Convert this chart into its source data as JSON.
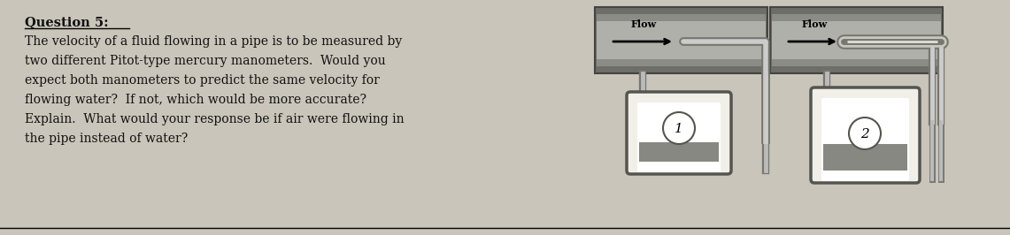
{
  "bg_color": "#cac5ba",
  "title": "Question 5:",
  "body_lines": [
    "The velocity of a fluid flowing in a pipe is to be measured by",
    "two different Pitot-type mercury manometers.  Would you",
    "expect both manometers to predict the same velocity for",
    "flowing water?  If not, which would be more accurate?",
    "Explain.  What would your response be if air were flowing in",
    "the pipe instead of water?"
  ],
  "flow_label": "Flow",
  "label1": "1",
  "label2": "2",
  "pipe_dark": "#6e6e68",
  "pipe_mid": "#8c8c86",
  "pipe_light": "#b0b0aa",
  "tube_color": "#aaaaaa",
  "tube_dark": "#777770",
  "manometer_bg": "#f0efe8",
  "manometer_border": "#555550",
  "mercury_color": "#888882",
  "text_color": "#111111",
  "title_fontsize": 10.5,
  "body_fontsize": 10.0
}
